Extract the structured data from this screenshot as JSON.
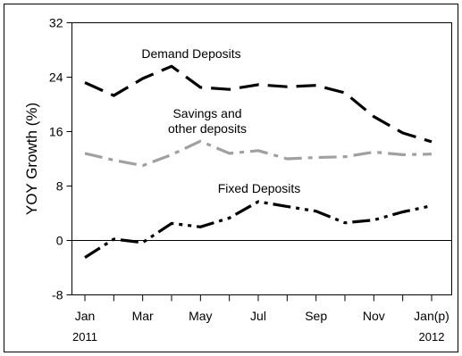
{
  "chart_data": {
    "type": "line",
    "title": "",
    "ylabel": "YOY Growth (%)",
    "xlabel": "",
    "ylim": [
      -8,
      32
    ],
    "yticks": [
      -8,
      0,
      8,
      16,
      24,
      32
    ],
    "grid": false,
    "legend": "none",
    "x": [
      "Jan 2011",
      "Feb 2011",
      "Mar 2011",
      "Apr 2011",
      "May 2011",
      "Jun 2011",
      "Jul 2011",
      "Aug 2011",
      "Sep 2011",
      "Oct 2011",
      "Nov 2011",
      "Dec 2011",
      "Jan 2012"
    ],
    "xtick_labels": [
      "Jan",
      "Mar",
      "May",
      "Jul",
      "Sep",
      "Nov",
      "Jan(p)"
    ],
    "xtick_indices": [
      0,
      2,
      4,
      6,
      8,
      10,
      12
    ],
    "year_labels": [
      {
        "index": 0,
        "text": "2011"
      },
      {
        "index": 12,
        "text": "2012"
      }
    ],
    "series": [
      {
        "name": "Demand Deposits",
        "color": "#000000",
        "style": "dashed",
        "values": [
          23.2,
          21.3,
          23.8,
          25.6,
          22.5,
          22.2,
          22.9,
          22.6,
          22.8,
          21.7,
          18.2,
          15.8,
          14.5
        ]
      },
      {
        "name": "Savings and other deposits",
        "label_lines": [
          "Savings and",
          "other deposits"
        ],
        "color": "#a0a0a0",
        "style": "dashdot",
        "values": [
          12.8,
          11.8,
          11.0,
          12.6,
          14.6,
          12.8,
          13.2,
          12.0,
          12.2,
          12.3,
          13.0,
          12.6,
          12.7
        ]
      },
      {
        "name": "Fixed Deposits",
        "color": "#000000",
        "style": "dashdotdot",
        "values": [
          -2.5,
          0.2,
          -0.3,
          2.5,
          2.0,
          3.3,
          5.7,
          5.0,
          4.3,
          2.6,
          3.0,
          4.2,
          5.1
        ]
      }
    ]
  }
}
